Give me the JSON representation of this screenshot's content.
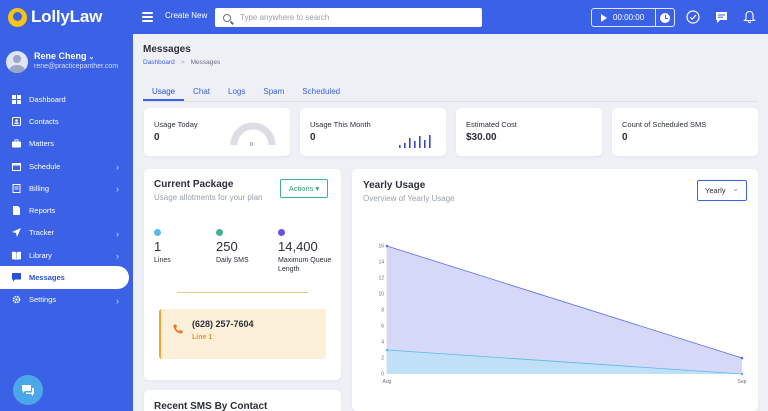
{
  "app": {
    "logo_text": "LollyLaw",
    "brand_color": "#3b62e6"
  },
  "header": {
    "create_new": "Create New",
    "search_placeholder": "Type anywhere to search",
    "timer": "00:00:00",
    "icons": [
      "check-circle-icon",
      "message-icon",
      "bell-icon"
    ]
  },
  "user": {
    "name": "Rene Cheng",
    "caret": "⌄",
    "email": "rene@practicepanther.com"
  },
  "sidebar": {
    "items": [
      {
        "label": "Dashboard",
        "icon": "dashboard-icon",
        "has_children": false
      },
      {
        "label": "Contacts",
        "icon": "contacts-icon",
        "has_children": false
      },
      {
        "label": "Matters",
        "icon": "briefcase-icon",
        "has_children": false
      },
      {
        "label": "Schedule",
        "icon": "calendar-icon",
        "has_children": true
      },
      {
        "label": "Billing",
        "icon": "billing-icon",
        "has_children": true
      },
      {
        "label": "Reports",
        "icon": "reports-icon",
        "has_children": false
      },
      {
        "label": "Tracker",
        "icon": "tracker-icon",
        "has_children": true
      },
      {
        "label": "Library",
        "icon": "library-icon",
        "has_children": true
      },
      {
        "label": "Messages",
        "icon": "messages-icon",
        "has_children": false,
        "active": true
      },
      {
        "label": "Settings",
        "icon": "gear-icon",
        "has_children": true
      }
    ],
    "chevron": "›"
  },
  "page": {
    "title": "Messages",
    "breadcrumb": {
      "link": "Dashboard",
      "separator": ">",
      "current": "Messages"
    },
    "tabs": [
      "Usage",
      "Chat",
      "Logs",
      "Spam",
      "Scheduled"
    ],
    "active_tab": "Usage"
  },
  "stats": [
    {
      "label": "Usage Today",
      "value": "0",
      "widget": "gauge",
      "gauge_value": "0"
    },
    {
      "label": "Usage This Month",
      "value": "0",
      "widget": "mini-bars"
    },
    {
      "label": "Estimated Cost",
      "value": "$30.00"
    },
    {
      "label": "Count of Scheduled SMS",
      "value": "0"
    }
  ],
  "package": {
    "title": "Current Package",
    "subtitle": "Usage allotments for your plan",
    "actions_label": "Actions ▾",
    "metrics": [
      {
        "value": "1",
        "label": "Lines",
        "color": "#5bb8e8"
      },
      {
        "value": "250",
        "label": "Daily SMS",
        "color": "#3fb394"
      },
      {
        "value": "14,400",
        "label": "Maximum Queue Length",
        "color": "#6a4fe0"
      }
    ],
    "phone": {
      "number": "(628) 257-7604",
      "line": "Line 1",
      "icon": "phone-icon"
    }
  },
  "yearly": {
    "title": "Yearly Usage",
    "subtitle": "Overview of  Yearly Usage",
    "select_value": "Yearly",
    "select_chevron": "⌄"
  },
  "chart_data": {
    "type": "area",
    "categories": [
      "Aug",
      "Sep"
    ],
    "ylim": [
      0,
      16
    ],
    "yticks": [
      "0",
      "2",
      "4",
      "6",
      "8",
      "10",
      "12",
      "14",
      "16"
    ],
    "series": [
      {
        "values": [
          16,
          2
        ],
        "color": "#5b6ee8",
        "fill": "#d5d9f7"
      },
      {
        "values": [
          3,
          0
        ],
        "color": "#5bb8e8",
        "fill": "#bfe0f7"
      }
    ],
    "grid": false
  },
  "recent": {
    "title": "Recent SMS By Contact"
  }
}
